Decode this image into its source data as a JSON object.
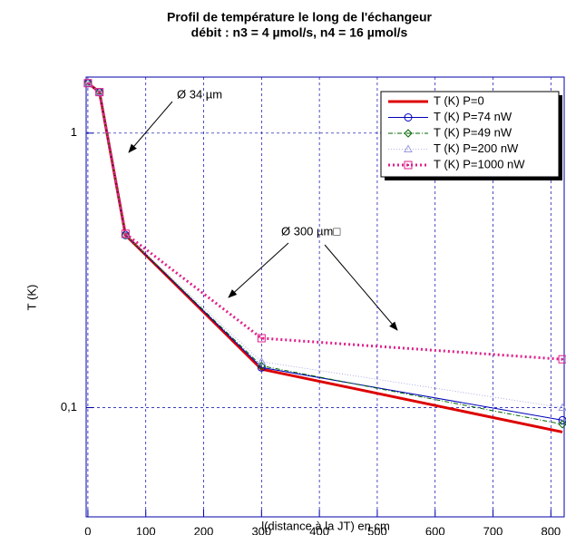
{
  "chart_data": {
    "type": "line",
    "title": "Profil de température le long de l'échangeur",
    "subtitle": "débit : n3 = 4 µmol/s, n4 = 16 µmol/s",
    "x_label": "l(distance à la JT) en cm",
    "y_label": "T (K)",
    "annotations": [
      "Ø 34 µm",
      "Ø 300 µm□"
    ],
    "x": [
      0,
      20,
      65,
      300,
      820
    ],
    "series": [
      {
        "name": "T (K) P=0",
        "color": "#dd0000",
        "values": [
          1.52,
          1.41,
          0.425,
          0.138,
          0.0815
        ]
      },
      {
        "name": "T (K) P=74 nW",
        "color": "#0000bb",
        "values": [
          1.52,
          1.41,
          0.425,
          0.14,
          0.09
        ]
      },
      {
        "name": "T (K) P=49 nW",
        "color": "#006600",
        "values": [
          1.52,
          1.41,
          0.425,
          0.142,
          0.087
        ]
      },
      {
        "name": "T (K) P=200 nW",
        "color": "#9a9ae0",
        "values": [
          1.52,
          1.41,
          0.425,
          0.147,
          0.1
        ]
      },
      {
        "name": "T (K) P=1000 nW",
        "color": "#e0208a",
        "values": [
          1.52,
          1.41,
          0.43,
          0.179,
          0.15
        ]
      }
    ],
    "xlim": [
      -3,
      823
    ],
    "xticks": [
      0,
      100,
      200,
      300,
      400,
      500,
      600,
      700,
      800
    ],
    "ylim": [
      0.04,
      1.6
    ],
    "yticks": [
      {
        "value": 0.1,
        "label": "0,1"
      },
      1
    ],
    "log_y": true,
    "grid": true,
    "legend": "upper right"
  }
}
